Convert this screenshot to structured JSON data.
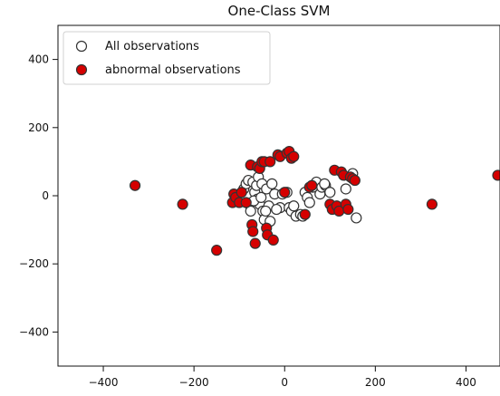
{
  "chart_data": {
    "type": "scatter",
    "title": "One-Class SVM",
    "xlabel": "",
    "ylabel": "",
    "xlim": [
      -500,
      475
    ],
    "ylim": [
      -500,
      500
    ],
    "xticks": [
      -400,
      -200,
      0,
      200,
      400
    ],
    "yticks": [
      -400,
      -200,
      0,
      200,
      400
    ],
    "grid": false,
    "legend_position": "top-left",
    "series": [
      {
        "name": "All observations",
        "style": {
          "fill": "#ffffff",
          "stroke": "#333333"
        },
        "points": [
          [
            -90,
            20
          ],
          [
            -85,
            35
          ],
          [
            -80,
            45
          ],
          [
            -78,
            -25
          ],
          [
            -75,
            -45
          ],
          [
            -70,
            40
          ],
          [
            -66,
            10
          ],
          [
            -62,
            30
          ],
          [
            -60,
            -10
          ],
          [
            -58,
            55
          ],
          [
            -55,
            -25
          ],
          [
            -50,
            35
          ],
          [
            -48,
            -45
          ],
          [
            -45,
            -70
          ],
          [
            -40,
            20
          ],
          [
            -35,
            -30
          ],
          [
            -32,
            -75
          ],
          [
            -28,
            35
          ],
          [
            -22,
            5
          ],
          [
            -10,
            -35
          ],
          [
            -5,
            5
          ],
          [
            5,
            10
          ],
          [
            10,
            -35
          ],
          [
            15,
            -45
          ],
          [
            25,
            -60
          ],
          [
            35,
            -55
          ],
          [
            45,
            10
          ],
          [
            50,
            -5
          ],
          [
            55,
            -20
          ],
          [
            62,
            25
          ],
          [
            70,
            40
          ],
          [
            78,
            5
          ],
          [
            82,
            25
          ],
          [
            90,
            30
          ],
          [
            100,
            10
          ],
          [
            135,
            20
          ],
          [
            150,
            65
          ],
          [
            158,
            -65
          ],
          [
            -42,
            -45
          ],
          [
            -68,
            -15
          ],
          [
            -52,
            -5
          ],
          [
            -18,
            -40
          ],
          [
            20,
            -30
          ],
          [
            40,
            -60
          ],
          [
            88,
            35
          ]
        ]
      },
      {
        "name": "abnormal observations",
        "style": {
          "fill": "#d50000",
          "stroke": "#333333"
        },
        "points": [
          [
            -330,
            30
          ],
          [
            -225,
            -25
          ],
          [
            -150,
            -160
          ],
          [
            -115,
            -20
          ],
          [
            -112,
            5
          ],
          [
            -108,
            -5
          ],
          [
            -100,
            -20
          ],
          [
            -95,
            10
          ],
          [
            -85,
            -20
          ],
          [
            -75,
            90
          ],
          [
            -72,
            -85
          ],
          [
            -70,
            -105
          ],
          [
            -65,
            -140
          ],
          [
            -60,
            85
          ],
          [
            -55,
            80
          ],
          [
            -50,
            100
          ],
          [
            -45,
            100
          ],
          [
            -40,
            -95
          ],
          [
            -38,
            -115
          ],
          [
            -32,
            100
          ],
          [
            -25,
            -130
          ],
          [
            -15,
            120
          ],
          [
            -10,
            115
          ],
          [
            5,
            125
          ],
          [
            10,
            130
          ],
          [
            15,
            110
          ],
          [
            20,
            115
          ],
          [
            0,
            10
          ],
          [
            45,
            -55
          ],
          [
            55,
            25
          ],
          [
            60,
            30
          ],
          [
            100,
            -25
          ],
          [
            105,
            -40
          ],
          [
            110,
            75
          ],
          [
            115,
            -30
          ],
          [
            120,
            -45
          ],
          [
            125,
            70
          ],
          [
            130,
            60
          ],
          [
            135,
            -25
          ],
          [
            140,
            -40
          ],
          [
            145,
            55
          ],
          [
            150,
            50
          ],
          [
            155,
            45
          ],
          [
            325,
            -25
          ],
          [
            470,
            60
          ]
        ]
      }
    ]
  }
}
